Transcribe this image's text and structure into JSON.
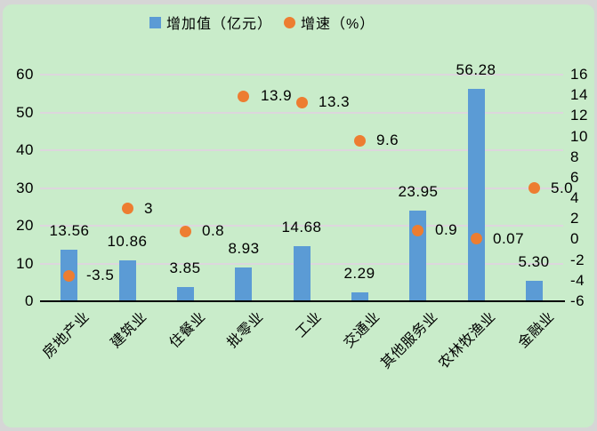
{
  "colors": {
    "frame": "#d6d6d6",
    "background": "#c9ecca",
    "bar": "#5b9bd5",
    "marker": "#ed7d31",
    "gridline": "#ddd6dd",
    "axis_line": "#000000",
    "text": "#000000"
  },
  "chart_data": {
    "type": "bar",
    "subtype": "combo: bars (left axis) + scatter markers (right axis), dual y-axes",
    "title": "",
    "categories": [
      "房地产业",
      "建筑业",
      "住餐业",
      "批零业",
      "工业",
      "交通业",
      "其他服务业",
      "农林牧渔业",
      "金融业"
    ],
    "series": [
      {
        "name": "增加值（亿元）",
        "type": "bar",
        "axis": "left",
        "color": "#5b9bd5",
        "values": [
          13.56,
          10.86,
          3.85,
          8.93,
          14.68,
          2.29,
          23.95,
          56.28,
          5.3
        ],
        "labels": [
          "13.56",
          "10.86",
          "3.85",
          "8.93",
          "14.68",
          "2.29",
          "23.95",
          "56.28",
          "5.30"
        ]
      },
      {
        "name": "增速（%）",
        "type": "scatter",
        "axis": "right",
        "color": "#ed7d31",
        "values": [
          -3.5,
          3,
          0.8,
          13.9,
          13.3,
          9.6,
          0.9,
          0.07,
          5
        ],
        "labels": [
          "-3.5",
          "3",
          "0.8",
          "13.9",
          "13.3",
          "9.6",
          "0.9",
          "0.07",
          "5.0"
        ]
      }
    ],
    "left_axis": {
      "min": 0,
      "max": 60,
      "step": 10,
      "ticks": [
        0,
        10,
        20,
        30,
        40,
        50,
        60
      ]
    },
    "right_axis": {
      "min": -6,
      "max": 16,
      "step": 2,
      "ticks": [
        -6,
        -4,
        -2,
        0,
        2,
        4,
        6,
        8,
        10,
        12,
        14,
        16
      ]
    },
    "grid": true,
    "legend_position": "top"
  }
}
